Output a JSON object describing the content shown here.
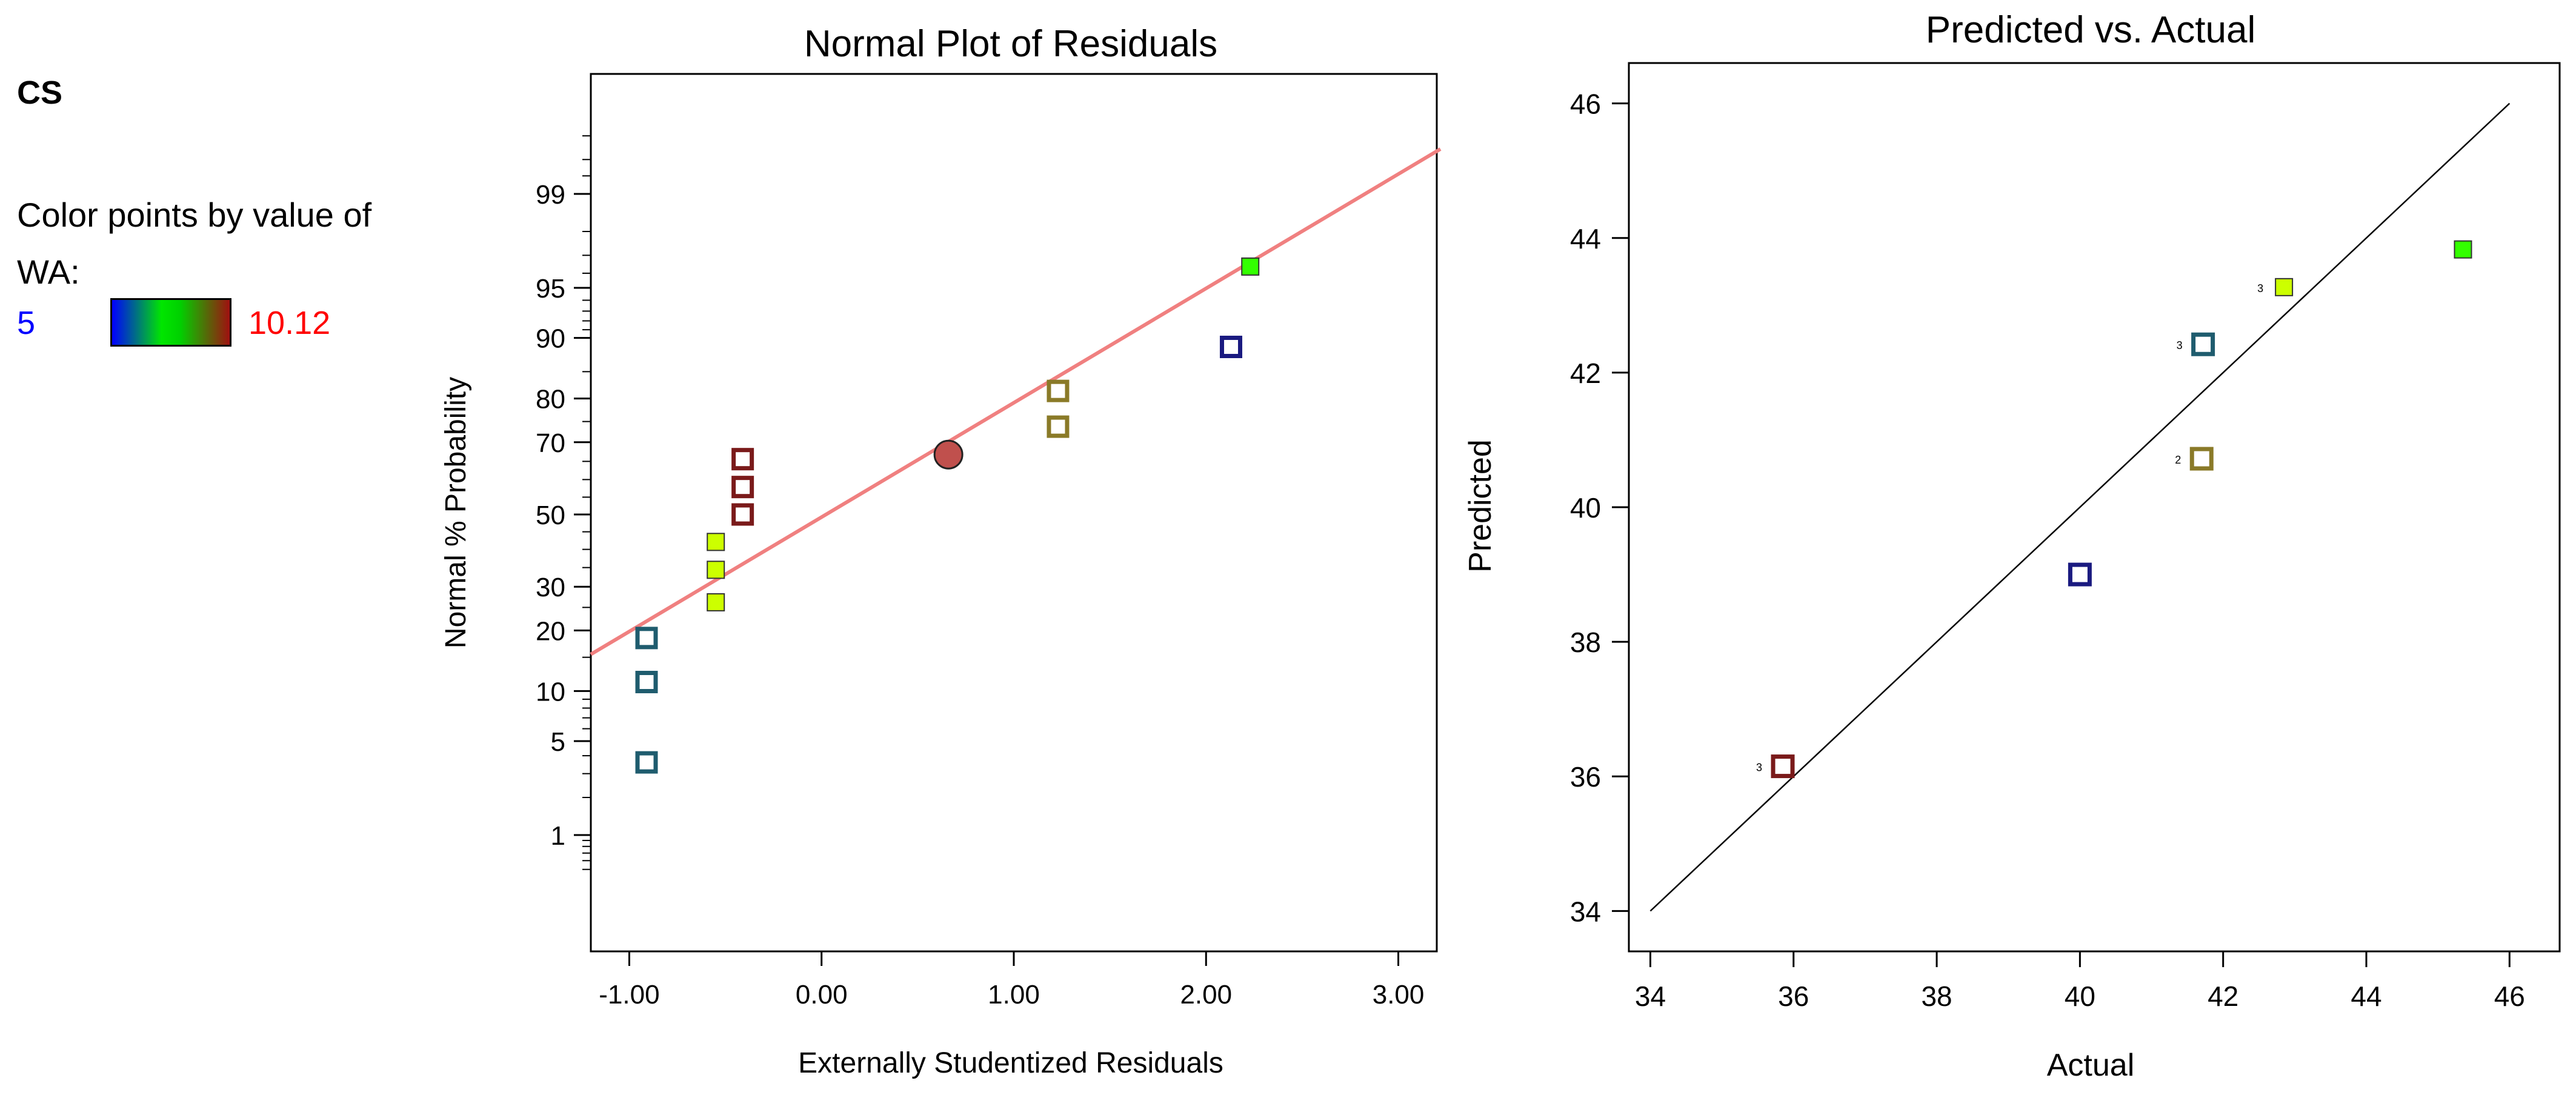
{
  "legend": {
    "title": "CS",
    "caption": "Color points by value of WA:",
    "min_label": "5",
    "max_label": "10.12",
    "gradient_colors": [
      "#0000ff",
      "#00e600",
      "#a01010"
    ]
  },
  "chart_data": [
    {
      "type": "scatter",
      "title": "Normal Plot of Residuals",
      "xlabel": "Externally Studentized Residuals",
      "ylabel": "Normal % Probability",
      "xlim": [
        -1.2,
        3.2
      ],
      "x_ticks": [
        "-1.00",
        "0.00",
        "1.00",
        "2.00",
        "3.00"
      ],
      "y_ticks": [
        "1",
        "5",
        "10",
        "20",
        "30",
        "50",
        "70",
        "80",
        "90",
        "95",
        "99"
      ],
      "fit_line": {
        "x": [
          -1.2,
          3.2
        ],
        "y": [
          15.5,
          99.6
        ],
        "color": "#f08080"
      },
      "highlight_point": {
        "x": 0.66,
        "y": 66.8,
        "color": "#c0504d"
      },
      "points": [
        {
          "x": -0.91,
          "y": 3.6,
          "color": "#1f5c6e",
          "filled": false
        },
        {
          "x": -0.91,
          "y": 11.2,
          "color": "#1f5c6e",
          "filled": false
        },
        {
          "x": -0.91,
          "y": 18.5,
          "color": "#1f5c6e",
          "filled": false
        },
        {
          "x": -0.55,
          "y": 26.2,
          "color": "#ccff00",
          "filled": true
        },
        {
          "x": -0.55,
          "y": 34.4,
          "color": "#ccff00",
          "filled": true
        },
        {
          "x": -0.55,
          "y": 42.1,
          "color": "#ccff00",
          "filled": true
        },
        {
          "x": -0.41,
          "y": 50.0,
          "color": "#7a1a1a",
          "filled": false
        },
        {
          "x": -0.41,
          "y": 57.9,
          "color": "#7a1a1a",
          "filled": false
        },
        {
          "x": -0.41,
          "y": 65.6,
          "color": "#7a1a1a",
          "filled": false
        },
        {
          "x": 1.23,
          "y": 73.8,
          "color": "#8a7a28",
          "filled": false
        },
        {
          "x": 1.23,
          "y": 81.5,
          "color": "#8a7a28",
          "filled": false
        },
        {
          "x": 2.13,
          "y": 88.8,
          "color": "#1a1a80",
          "filled": false
        },
        {
          "x": 2.23,
          "y": 96.4,
          "color": "#33ff00",
          "filled": true
        }
      ]
    },
    {
      "type": "scatter",
      "title": "Predicted vs. Actual",
      "xlabel": "Actual",
      "ylabel": "Predicted",
      "xlim": [
        33.7,
        46.7
      ],
      "ylim": [
        33.4,
        46.6
      ],
      "x_ticks": [
        "34",
        "36",
        "38",
        "40",
        "42",
        "44",
        "46"
      ],
      "y_ticks": [
        "34",
        "36",
        "38",
        "40",
        "42",
        "44",
        "46"
      ],
      "reference_line": {
        "x": [
          34,
          46
        ],
        "y": [
          34,
          46
        ]
      },
      "points": [
        {
          "x": 35.85,
          "y": 36.15,
          "color": "#7a1a1a",
          "filled": false,
          "count": "3"
        },
        {
          "x": 40.0,
          "y": 39.0,
          "color": "#1a1a80",
          "filled": false,
          "count": ""
        },
        {
          "x": 41.7,
          "y": 40.72,
          "color": "#8a7a28",
          "filled": false,
          "count": "2"
        },
        {
          "x": 41.72,
          "y": 42.42,
          "color": "#1f5c6e",
          "filled": false,
          "count": "3"
        },
        {
          "x": 42.85,
          "y": 43.27,
          "color": "#ccff00",
          "filled": true,
          "count": "3"
        },
        {
          "x": 45.35,
          "y": 43.83,
          "color": "#33ff00",
          "filled": true,
          "count": ""
        }
      ]
    }
  ]
}
